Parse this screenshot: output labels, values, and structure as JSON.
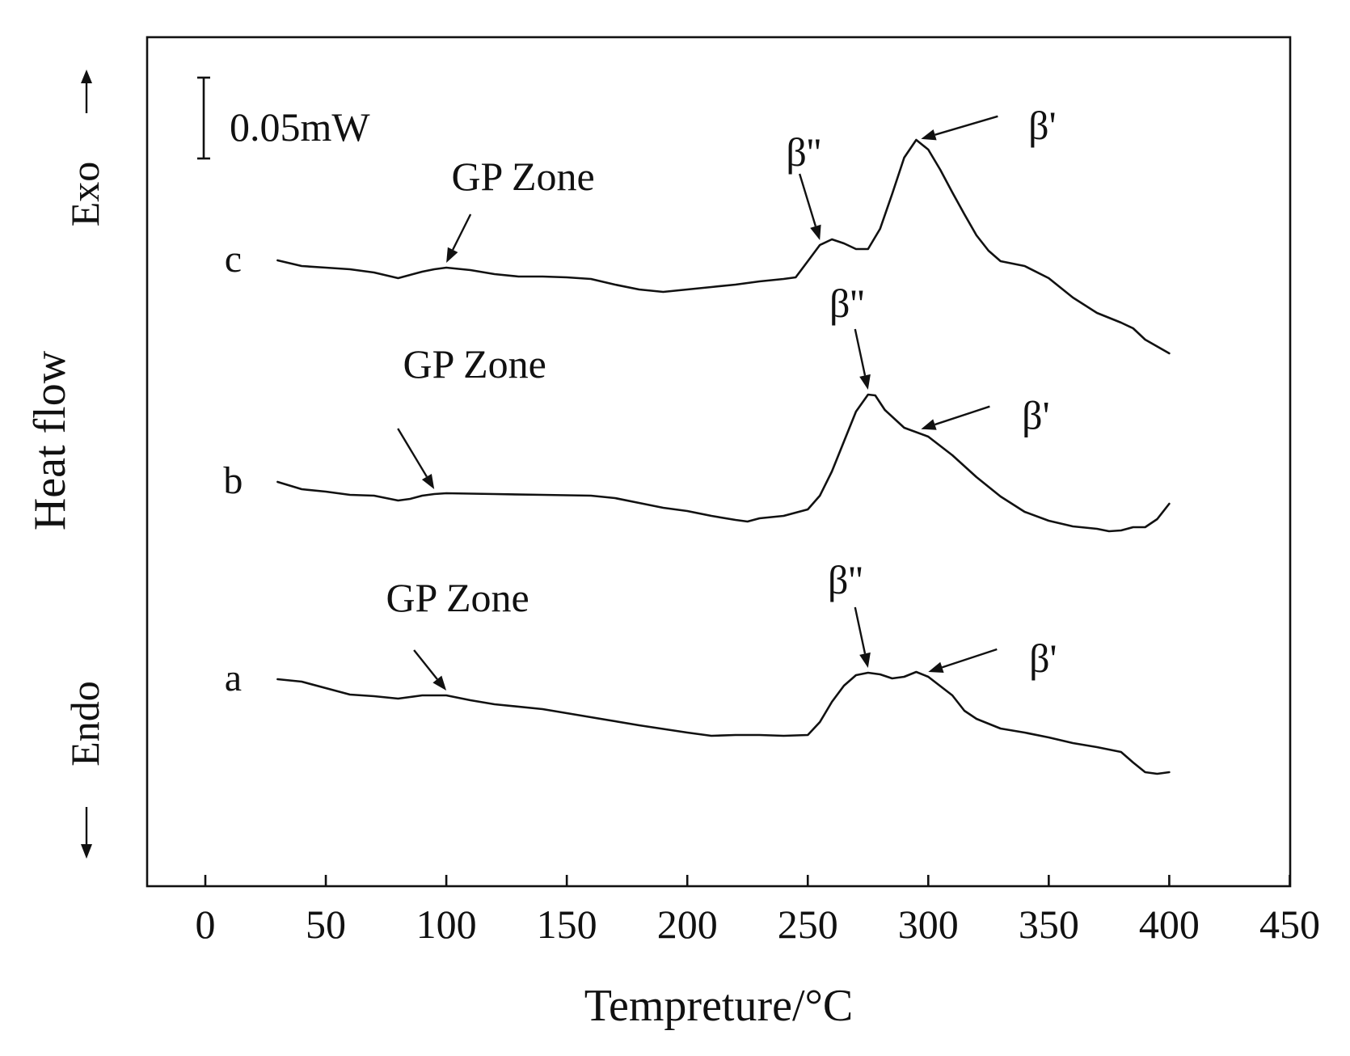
{
  "chart_data": {
    "type": "line",
    "title": "",
    "xlabel": "Tempreture/°C",
    "ylabel": "Heat flow",
    "exo_label": "Exo",
    "endo_label": "Endo",
    "xlim": [
      -25,
      450
    ],
    "xticks": [
      0,
      50,
      100,
      150,
      200,
      250,
      300,
      350,
      400,
      450
    ],
    "grid": false,
    "scale_bar_label": "0.05mW",
    "series": [
      {
        "name": "c",
        "x": [
          30,
          40,
          50,
          60,
          70,
          80,
          85,
          90,
          95,
          100,
          110,
          120,
          130,
          140,
          150,
          160,
          170,
          180,
          190,
          200,
          210,
          220,
          230,
          240,
          245,
          250,
          255,
          260,
          265,
          270,
          275,
          280,
          285,
          290,
          295,
          300,
          305,
          310,
          315,
          320,
          325,
          330,
          335,
          340,
          350,
          360,
          370,
          380,
          385,
          390,
          400
        ],
        "y": [
          -0.04,
          -0.047,
          -0.049,
          -0.051,
          -0.055,
          -0.062,
          -0.058,
          -0.054,
          -0.051,
          -0.049,
          -0.052,
          -0.057,
          -0.06,
          -0.06,
          -0.061,
          -0.063,
          -0.07,
          -0.076,
          -0.079,
          -0.076,
          -0.073,
          -0.07,
          -0.066,
          -0.063,
          -0.061,
          -0.041,
          -0.021,
          -0.014,
          -0.019,
          -0.026,
          -0.026,
          -0.001,
          0.042,
          0.087,
          0.109,
          0.097,
          0.072,
          0.044,
          0.017,
          -0.009,
          -0.028,
          -0.041,
          -0.044,
          -0.047,
          -0.062,
          -0.086,
          -0.105,
          -0.117,
          -0.124,
          -0.138,
          -0.155
        ]
      },
      {
        "name": "b",
        "x": [
          30,
          40,
          50,
          60,
          70,
          80,
          85,
          90,
          95,
          100,
          120,
          140,
          160,
          170,
          180,
          190,
          200,
          210,
          220,
          225,
          230,
          240,
          250,
          255,
          260,
          265,
          270,
          275,
          278,
          282,
          290,
          300,
          310,
          320,
          330,
          340,
          350,
          360,
          370,
          375,
          380,
          385,
          390,
          395,
          400
        ],
        "y": [
          -0.04,
          -0.049,
          -0.052,
          -0.056,
          -0.057,
          -0.063,
          -0.061,
          -0.057,
          -0.055,
          -0.054,
          -0.055,
          -0.056,
          -0.057,
          -0.06,
          -0.066,
          -0.072,
          -0.076,
          -0.082,
          -0.087,
          -0.089,
          -0.085,
          -0.082,
          -0.074,
          -0.057,
          -0.027,
          0.01,
          0.047,
          0.068,
          0.067,
          0.049,
          0.027,
          0.016,
          -0.007,
          -0.034,
          -0.058,
          -0.077,
          -0.088,
          -0.095,
          -0.098,
          -0.101,
          -0.1,
          -0.096,
          -0.096,
          -0.086,
          -0.067
        ]
      },
      {
        "name": "a",
        "x": [
          30,
          40,
          50,
          60,
          70,
          80,
          85,
          90,
          100,
          110,
          120,
          140,
          160,
          180,
          200,
          210,
          220,
          230,
          240,
          250,
          255,
          260,
          265,
          270,
          275,
          280,
          285,
          290,
          295,
          300,
          310,
          315,
          320,
          330,
          340,
          350,
          360,
          370,
          380,
          385,
          390,
          395,
          400
        ],
        "y": [
          -0.057,
          -0.06,
          -0.068,
          -0.076,
          -0.078,
          -0.081,
          -0.079,
          -0.077,
          -0.077,
          -0.083,
          -0.088,
          -0.094,
          -0.104,
          -0.114,
          -0.123,
          -0.127,
          -0.126,
          -0.126,
          -0.127,
          -0.126,
          -0.11,
          -0.085,
          -0.065,
          -0.052,
          -0.049,
          -0.051,
          -0.056,
          -0.054,
          -0.048,
          -0.054,
          -0.077,
          -0.096,
          -0.106,
          -0.118,
          -0.123,
          -0.129,
          -0.136,
          -0.141,
          -0.147,
          -0.16,
          -0.172,
          -0.174,
          -0.172
        ]
      }
    ],
    "annotations": [
      {
        "series": "c",
        "text": "GP Zone",
        "at_x": 100
      },
      {
        "series": "c",
        "text": "β''",
        "at_x": 255
      },
      {
        "series": "c",
        "text": "β'",
        "at_x": 297
      },
      {
        "series": "b",
        "text": "GP Zone",
        "at_x": 95
      },
      {
        "series": "b",
        "text": "β''",
        "at_x": 275
      },
      {
        "series": "b",
        "text": "β'",
        "at_x": 297
      },
      {
        "series": "a",
        "text": "GP Zone",
        "at_x": 100
      },
      {
        "series": "a",
        "text": "β''",
        "at_x": 275
      },
      {
        "series": "a",
        "text": "β'",
        "at_x": 300
      }
    ]
  }
}
